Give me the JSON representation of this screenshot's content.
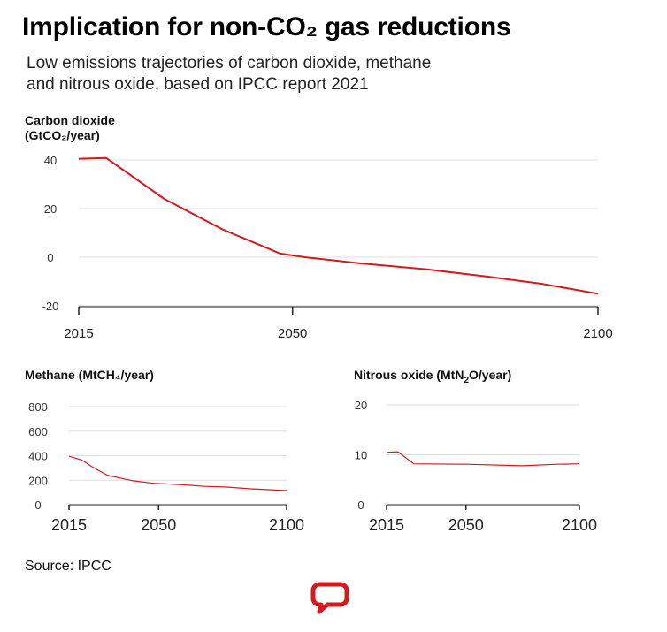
{
  "header": {
    "title": "Implication for non-CO₂ gas reductions",
    "subtitle_line1": "Low emissions trajectories of carbon dioxide, methane",
    "subtitle_line2": "and nitrous oxide, based on IPCC report 2021"
  },
  "footer": {
    "source": "Source: IPCC"
  },
  "colors": {
    "line": "#d4191f",
    "grid": "#dddddd",
    "axis": "#222222",
    "logo": "#d4191f"
  },
  "icons": {
    "logo": "speech-bubble-logo-icon"
  },
  "chart_data": [
    {
      "id": "co2",
      "type": "line",
      "label_line1": "Carbon dioxide",
      "label_line2": "(GtCO₂/year)",
      "xlim": [
        2015,
        2100
      ],
      "ylim": [
        -20,
        40
      ],
      "yticks": [
        40,
        20,
        0,
        -20
      ],
      "xticks": [
        2015,
        2050,
        2100
      ],
      "grid": true,
      "series": [
        {
          "x": [
            2015,
            2019.5,
            2029,
            2038.5,
            2048,
            2052,
            2061,
            2072,
            2082,
            2091,
            2100
          ],
          "y": [
            40.5,
            40.8,
            24,
            11.5,
            1.5,
            0,
            -2.5,
            -5,
            -8,
            -11,
            -15
          ]
        }
      ]
    },
    {
      "id": "methane",
      "type": "line",
      "label": "Methane (MtCH₄/year)",
      "xlim": [
        2015,
        2100
      ],
      "ylim": [
        0,
        800
      ],
      "yticks": [
        800,
        600,
        400,
        200,
        0
      ],
      "xticks": [
        2015,
        2050,
        2100
      ],
      "grid": true,
      "series": [
        {
          "x": [
            2015,
            2020,
            2024,
            2030,
            2040,
            2048,
            2058,
            2068,
            2076,
            2086,
            2100
          ],
          "y": [
            395,
            365,
            310,
            240,
            195,
            175,
            165,
            150,
            145,
            130,
            115
          ]
        }
      ]
    },
    {
      "id": "n2o",
      "type": "line",
      "label_prefix": "Nitrous oxide (MtN",
      "label_sub": "2",
      "label_suffix": "O/year)",
      "xlim": [
        2015,
        2100
      ],
      "ylim": [
        0,
        20
      ],
      "yticks": [
        20,
        10,
        0
      ],
      "xticks": [
        2015,
        2050,
        2100
      ],
      "grid": true,
      "series": [
        {
          "x": [
            2015,
            2020,
            2027,
            2050,
            2075,
            2090,
            2100
          ],
          "y": [
            10.5,
            10.6,
            8.2,
            8.1,
            7.8,
            8.1,
            8.2
          ]
        }
      ]
    }
  ]
}
